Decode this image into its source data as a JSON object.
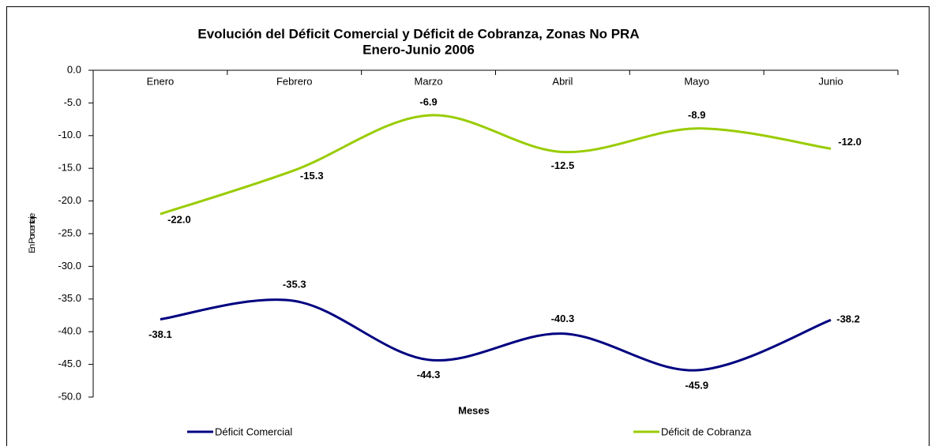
{
  "chart_data": {
    "type": "line",
    "title": "Evolución del Déficit Comercial y Déficit de Cobranza, Zonas No PRA",
    "subtitle": "Enero-Junio 2006",
    "x_label": "Meses",
    "y_label": "En Porcentaje",
    "categories": [
      "Enero",
      "Febrero",
      "Marzo",
      "Abril",
      "Mayo",
      "Junio"
    ],
    "series": [
      {
        "name": "Déficit Comercial",
        "color": "#000080",
        "values": [
          -38.1,
          -35.3,
          -44.3,
          -40.3,
          -45.9,
          -38.2
        ],
        "value_labels": [
          "-38.1",
          "-35.3",
          "-44.3",
          "-40.3",
          "-45.9",
          "-38.2"
        ]
      },
      {
        "name": "Déficit de Cobranza",
        "color": "#99cc00",
        "values": [
          -22.0,
          -15.3,
          -6.9,
          -12.5,
          -8.9,
          -12.0
        ],
        "value_labels": [
          "-22.0",
          "-15.3",
          "-6.9",
          "-12.5",
          "-8.9",
          "-12.0"
        ]
      }
    ],
    "ylim": [
      -50,
      0
    ],
    "yticks": [
      {
        "value": 0,
        "label": "0.0"
      },
      {
        "value": -5,
        "label": "-5.0"
      },
      {
        "value": -10,
        "label": "-10.0"
      },
      {
        "value": -15,
        "label": "-15.0"
      },
      {
        "value": -20,
        "label": "-20.0"
      },
      {
        "value": -25,
        "label": "-25.0"
      },
      {
        "value": -30,
        "label": "-30.0"
      },
      {
        "value": -35,
        "label": "-35.0"
      },
      {
        "value": -40,
        "label": "-40.0"
      },
      {
        "value": -45,
        "label": "-45.0"
      },
      {
        "value": -50,
        "label": "-50.0"
      }
    ],
    "legend": "bottom"
  }
}
